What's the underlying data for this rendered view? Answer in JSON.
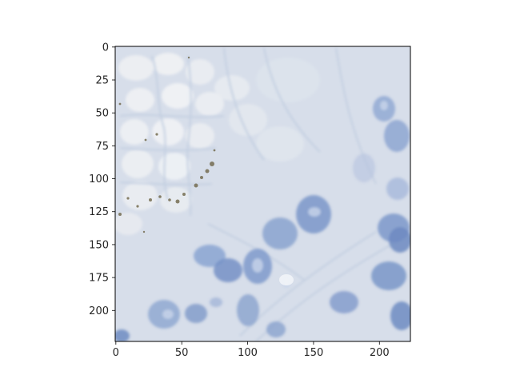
{
  "figure": {
    "image": {
      "description_name": "histology-tile",
      "palette": {
        "background": "#d7deea",
        "light_cells": "#e8ebef",
        "nucleus_blue": "#7a97c9",
        "nucleus_dark": "#5f7fb8",
        "membrane": "#b9c8de",
        "stain_brown": "#6f6648"
      }
    },
    "axes": {
      "x_ticks": [
        "0",
        "50",
        "100",
        "150",
        "200"
      ],
      "y_ticks": [
        "0",
        "25",
        "50",
        "75",
        "100",
        "125",
        "150",
        "175",
        "200"
      ],
      "x_range": [
        0,
        224
      ],
      "y_range": [
        0,
        224
      ],
      "frame_color": "#000000"
    }
  }
}
